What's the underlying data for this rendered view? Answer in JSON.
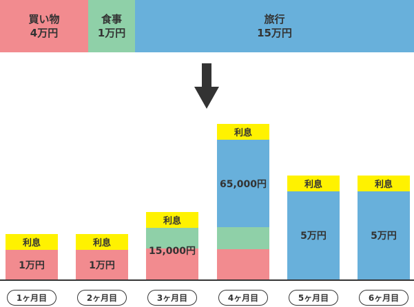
{
  "colors": {
    "shopping": "#f28b8f",
    "food": "#8fd0a8",
    "travel": "#68b0db",
    "interest": "#fff200"
  },
  "top_bar": {
    "segments": [
      {
        "label": "買い物",
        "amount": "4万円"
      },
      {
        "label": "食事",
        "amount": "1万円"
      },
      {
        "label": "旅行",
        "amount": "15万円"
      }
    ]
  },
  "interest_label": "利息",
  "months": [
    {
      "label": "1ヶ月目",
      "amount": "1万円"
    },
    {
      "label": "2ヶ月目",
      "amount": "1万円"
    },
    {
      "label": "3ヶ月目",
      "amount": "15,000円"
    },
    {
      "label": "4ヶ月目",
      "amount": "65,000円"
    },
    {
      "label": "5ヶ月目",
      "amount": "5万円"
    },
    {
      "label": "6ヶ月目",
      "amount": "5万円"
    }
  ]
}
